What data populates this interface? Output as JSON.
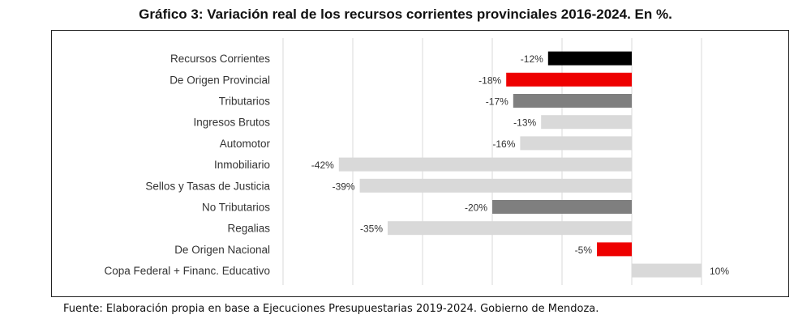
{
  "title": "Gráfico 3: Variación real de los recursos corrientes provinciales 2016-2024. En %.",
  "source": "Fuente: Elaboración propia en base a Ejecuciones Presupuestarias 2019-2024. Gobierno de Mendoza.",
  "chart_data": {
    "type": "bar",
    "orientation": "horizontal",
    "categories": [
      "Recursos Corrientes",
      "De Origen Provincial",
      "Tributarios",
      "Ingresos Brutos",
      "Automotor",
      "Inmobiliario",
      "Sellos y Tasas de Justicia",
      "No Tributarios",
      "Regalias",
      "De Origen Nacional",
      "Copa Federal + Financ. Educativo"
    ],
    "values": [
      -12,
      -18,
      -17,
      -13,
      -16,
      -42,
      -39,
      -20,
      -35,
      -5,
      10
    ],
    "data_labels": [
      "-12%",
      "-18%",
      "-17%",
      "-13%",
      "-16%",
      "-42%",
      "-39%",
      "-20%",
      "-35%",
      "-5%",
      "10%"
    ],
    "colors": [
      "#000000",
      "#ee0000",
      "#7f7f7f",
      "#d9d9d9",
      "#d9d9d9",
      "#d9d9d9",
      "#d9d9d9",
      "#7f7f7f",
      "#d9d9d9",
      "#ee0000",
      "#d9d9d9"
    ],
    "xlim": [
      -50,
      10
    ],
    "grid": true,
    "legend": "none"
  }
}
